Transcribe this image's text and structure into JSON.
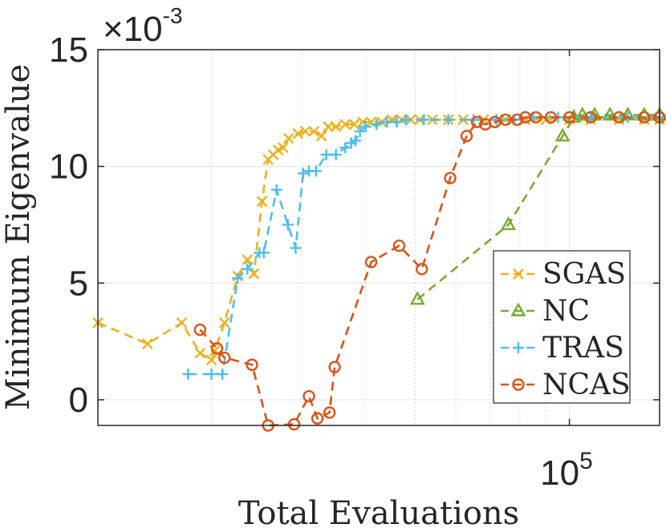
{
  "chart_data": {
    "type": "line",
    "title": "",
    "xlabel": "Total Evaluations",
    "ylabel": "Minimum Eigenvalue",
    "xscale": "log",
    "x_tick_labels": [
      {
        "value": 100000,
        "base": "10",
        "exp": "5"
      }
    ],
    "yticks": [
      0,
      5,
      10,
      15
    ],
    "y_tick_labels": [
      "0",
      "5",
      "10",
      "15"
    ],
    "y_exponent_label": {
      "prefix": "×10",
      "exp": "-3"
    },
    "ylim": [
      -1.1,
      15
    ],
    "xlim": [
      12000,
      150000
    ],
    "grid": true,
    "legend_position": "center-right",
    "series": [
      {
        "name": "SGAS",
        "color": "#EDB120",
        "marker": "x",
        "points": [
          [
            12000,
            3.3
          ],
          [
            15000,
            2.4
          ],
          [
            17500,
            3.3
          ],
          [
            19000,
            2.0
          ],
          [
            20000,
            1.7
          ],
          [
            20300,
            2.1
          ],
          [
            21200,
            3.3
          ],
          [
            22500,
            5.3
          ],
          [
            23500,
            6.0
          ],
          [
            24200,
            5.4
          ],
          [
            25100,
            8.5
          ],
          [
            25800,
            10.3
          ],
          [
            26400,
            10.5
          ],
          [
            27000,
            10.7
          ],
          [
            27600,
            10.8
          ],
          [
            28300,
            11.2
          ],
          [
            29500,
            11.4
          ],
          [
            30500,
            11.5
          ],
          [
            31700,
            11.5
          ],
          [
            32800,
            11.3
          ],
          [
            33800,
            11.7
          ],
          [
            35000,
            11.7
          ],
          [
            36500,
            11.8
          ],
          [
            38000,
            11.8
          ],
          [
            39500,
            11.9
          ],
          [
            41000,
            11.9
          ],
          [
            43000,
            11.9
          ],
          [
            45000,
            12.0
          ],
          [
            47000,
            12.0
          ],
          [
            49000,
            12.0
          ],
          [
            51000,
            12.0
          ],
          [
            54000,
            12.0
          ],
          [
            58000,
            12.0
          ],
          [
            62000,
            12.0
          ],
          [
            68000,
            12.0
          ],
          [
            75000,
            12.0
          ],
          [
            82000,
            12.0
          ],
          [
            90000,
            12.0
          ],
          [
            100000,
            12.0
          ],
          [
            110000,
            12.0
          ],
          [
            125000,
            12.0
          ],
          [
            140000,
            12.0
          ],
          [
            150000,
            12.0
          ]
        ]
      },
      {
        "name": "NC",
        "color": "#77AC30",
        "marker": "triangle",
        "points": [
          [
            50500,
            4.3
          ],
          [
            76000,
            7.5
          ],
          [
            97000,
            11.3
          ],
          [
            102000,
            12.1
          ],
          [
            106000,
            12.2
          ],
          [
            112000,
            12.2
          ],
          [
            120000,
            12.2
          ],
          [
            130000,
            12.2
          ],
          [
            140000,
            12.2
          ],
          [
            150000,
            12.2
          ]
        ]
      },
      {
        "name": "TRAS",
        "color": "#4DBEEE",
        "marker": "plus",
        "points": [
          [
            18000,
            1.1
          ],
          [
            20000,
            1.1
          ],
          [
            21000,
            1.1
          ],
          [
            22500,
            5.2
          ],
          [
            23500,
            5.6
          ],
          [
            24800,
            6.3
          ],
          [
            25300,
            6.3
          ],
          [
            26800,
            9.0
          ],
          [
            28200,
            7.5
          ],
          [
            29200,
            6.5
          ],
          [
            30200,
            9.7
          ],
          [
            31000,
            9.8
          ],
          [
            32000,
            9.8
          ],
          [
            33500,
            10.5
          ],
          [
            35000,
            10.5
          ],
          [
            36500,
            10.8
          ],
          [
            37500,
            11.0
          ],
          [
            38200,
            11.1
          ],
          [
            39000,
            11.5
          ],
          [
            40000,
            11.7
          ],
          [
            42000,
            11.8
          ],
          [
            44000,
            11.9
          ],
          [
            46000,
            11.9
          ],
          [
            48000,
            12.0
          ],
          [
            52000,
            12.0
          ],
          [
            58000,
            12.0
          ],
          [
            65000,
            12.0
          ],
          [
            72000,
            12.0
          ],
          [
            78000,
            12.0
          ],
          [
            85000,
            12.1
          ],
          [
            95000,
            12.1
          ],
          [
            110000,
            12.1
          ],
          [
            130000,
            12.1
          ],
          [
            150000,
            12.1
          ]
        ]
      },
      {
        "name": "NCAS",
        "color": "#D95319",
        "marker": "circle",
        "points": [
          [
            19000,
            3.0
          ],
          [
            20500,
            2.2
          ],
          [
            21200,
            1.8
          ],
          [
            24000,
            1.5
          ],
          [
            25800,
            -1.1
          ],
          [
            29000,
            -1.05
          ],
          [
            31000,
            0.15
          ],
          [
            32200,
            -0.8
          ],
          [
            34000,
            -0.55
          ],
          [
            34800,
            1.4
          ],
          [
            41000,
            5.9
          ],
          [
            46500,
            6.6
          ],
          [
            51500,
            5.6
          ],
          [
            58500,
            9.5
          ],
          [
            63000,
            11.3
          ],
          [
            66000,
            11.9
          ],
          [
            68500,
            11.8
          ],
          [
            71500,
            11.9
          ],
          [
            75000,
            12.0
          ],
          [
            79000,
            12.0
          ],
          [
            82000,
            12.1
          ],
          [
            86000,
            12.1
          ],
          [
            92000,
            12.1
          ],
          [
            100000,
            12.1
          ],
          [
            110000,
            12.1
          ],
          [
            125000,
            12.1
          ],
          [
            140000,
            12.1
          ],
          [
            150000,
            12.1
          ]
        ]
      }
    ]
  }
}
